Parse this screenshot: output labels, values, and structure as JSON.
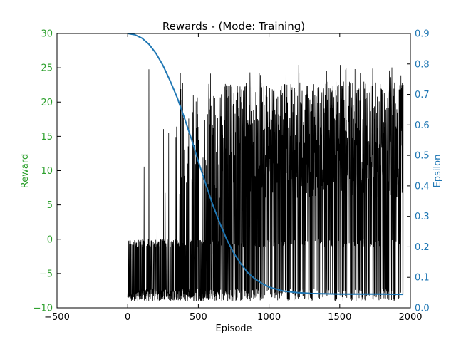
{
  "chart_data": {
    "type": "line",
    "title": "Rewards - (Mode: Training)",
    "xlabel": "Episode",
    "ylabel_left": "Reward",
    "ylabel_right": "Epsilon",
    "xlim": [
      -500,
      2000
    ],
    "ylim_left": [
      -10,
      30
    ],
    "ylim_right": [
      0.0,
      0.9
    ],
    "x_ticks": [
      "−500",
      "0",
      "500",
      "1000",
      "1500",
      "2000"
    ],
    "y_left_ticks": [
      "−10",
      "−5",
      "0",
      "5",
      "10",
      "15",
      "20",
      "25",
      "30"
    ],
    "y_right_ticks": [
      "0.0",
      "0.1",
      "0.2",
      "0.3",
      "0.4",
      "0.5",
      "0.6",
      "0.7",
      "0.8",
      "0.9"
    ],
    "grid": false,
    "colors": {
      "reward": "#000000",
      "epsilon": "#1f77b4",
      "left_axis": "#2ca02c",
      "right_axis": "#1f77b4"
    },
    "series": [
      {
        "name": "Reward",
        "axis": "left",
        "episodes": 1950,
        "min": -9.5,
        "max": 25.5,
        "dense_band": [
          0,
          -9
        ]
      },
      {
        "name": "Epsilon",
        "axis": "right",
        "x": [
          0,
          50,
          100,
          150,
          200,
          250,
          300,
          350,
          400,
          450,
          500,
          550,
          600,
          650,
          700,
          750,
          800,
          850,
          900,
          950,
          1000,
          1100,
          1200,
          1300,
          1400,
          1500,
          1600,
          1700,
          1800,
          1950
        ],
        "values": [
          0.9,
          0.896,
          0.885,
          0.865,
          0.835,
          0.795,
          0.745,
          0.69,
          0.625,
          0.555,
          0.48,
          0.41,
          0.34,
          0.28,
          0.225,
          0.18,
          0.145,
          0.115,
          0.095,
          0.08,
          0.068,
          0.055,
          0.05,
          0.047,
          0.046,
          0.045,
          0.045,
          0.045,
          0.045,
          0.044
        ]
      }
    ]
  }
}
